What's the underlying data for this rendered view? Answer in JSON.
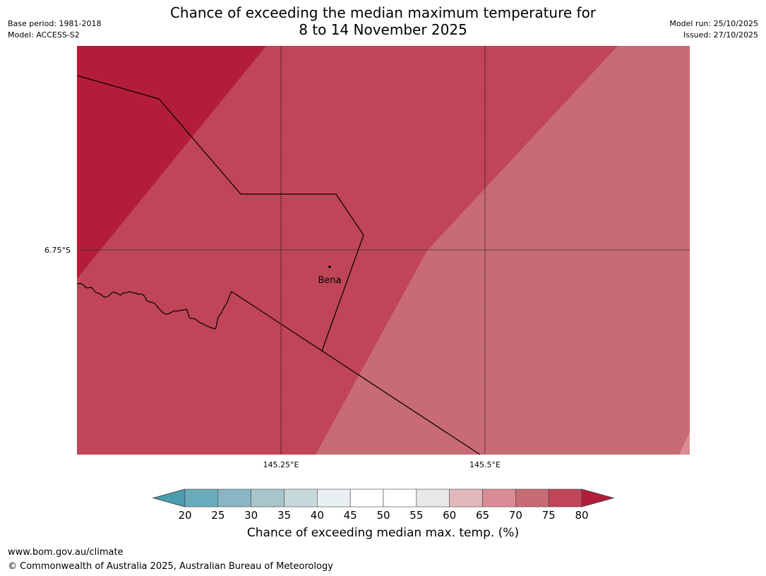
{
  "header": {
    "title_line1": "Chance of exceeding the median maximum temperature for",
    "title_line2": "8 to 14 November 2025",
    "base_period": "Base period: 1981-2018",
    "model": "Model: ACCESS-S2",
    "model_run": "Model run: 25/10/2025",
    "issued": "Issued: 27/10/2025"
  },
  "map": {
    "latitude_label": "6.75°S",
    "longitude_labels": [
      "145.25°E",
      "145.5°E"
    ],
    "town": {
      "name": "Bena"
    },
    "zones": [
      {
        "category": "75-80",
        "color": "#b21e3a"
      },
      {
        "category": "70-75",
        "color": "#c04558"
      },
      {
        "category": "65-70",
        "color": "#c86b75"
      },
      {
        "category": "60-65",
        "color": "#d98c95"
      }
    ]
  },
  "colorbar": {
    "title": "Chance of exceeding median max. temp. (%)",
    "ticks": [
      "20",
      "25",
      "30",
      "35",
      "40",
      "45",
      "50",
      "55",
      "60",
      "65",
      "70",
      "75",
      "80"
    ],
    "under_color": "#4a9dae",
    "over_color": "#b21e3a",
    "colors": [
      "#6aabbb",
      "#8ab6c3",
      "#a8c5cc",
      "#c8d9dc",
      "#e8f0f2",
      "#ffffff",
      "#ffffff",
      "#e8e8e8",
      "#e2b7bc",
      "#d98c95",
      "#c86b75",
      "#c04558"
    ]
  },
  "footer": {
    "url": "www.bom.gov.au/climate",
    "copyright": "© Commonwealth of Australia 2025, Australian Bureau of Meteorology"
  }
}
